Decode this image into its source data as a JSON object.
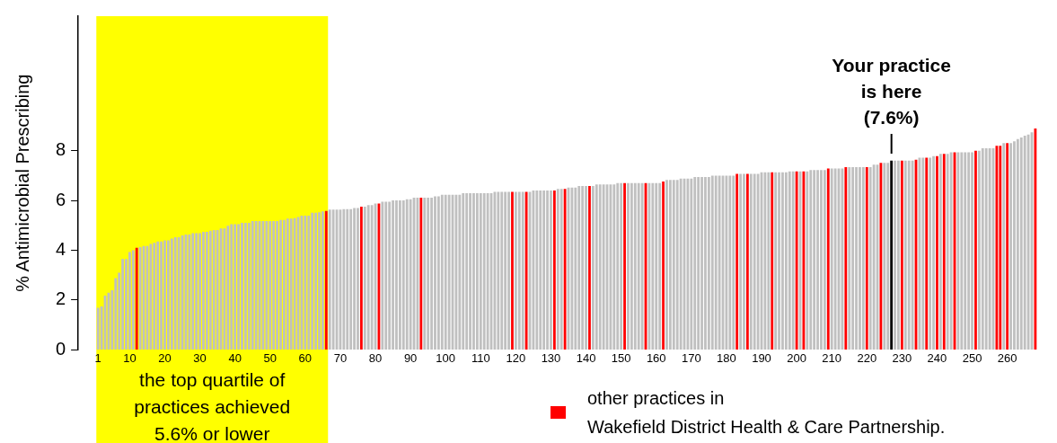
{
  "chart_data": {
    "type": "bar",
    "ylabel": "% Antimicrobial Prescribing",
    "xlim": [
      0.5,
      268.5
    ],
    "xticks": [
      1,
      10,
      20,
      30,
      40,
      50,
      60,
      70,
      80,
      90,
      100,
      110,
      120,
      130,
      140,
      150,
      160,
      170,
      180,
      190,
      200,
      210,
      220,
      230,
      240,
      250,
      260
    ],
    "ylim": [
      0,
      13.4
    ],
    "yticks": [
      0,
      2,
      4,
      6,
      8
    ],
    "grid": false,
    "legend": "bottom right",
    "bands": [
      {
        "axis": "x",
        "from": 0.5,
        "to": 66.5,
        "label": "the top quartile of\npractices achieved\n5.6% or lower",
        "color": "#ffff00"
      }
    ],
    "annotations": [
      {
        "text": "Your practice\nis here\n(7.6%)",
        "x": 227,
        "y": 7.6
      }
    ],
    "series": [
      {
        "color": "#c0c0c0",
        "x": [
          1,
          2,
          3,
          4,
          5,
          6,
          7,
          8,
          9,
          10,
          11,
          13,
          14,
          15,
          16,
          17,
          18,
          19,
          20,
          21,
          22,
          23,
          24,
          25,
          26,
          27,
          28,
          29,
          30,
          31,
          32,
          33,
          34,
          35,
          36,
          37,
          38,
          39,
          40,
          41,
          42,
          43,
          44,
          45,
          46,
          47,
          48,
          49,
          50,
          51,
          52,
          53,
          54,
          55,
          56,
          57,
          58,
          59,
          60,
          61,
          62,
          63,
          64,
          65,
          67,
          68,
          69,
          70,
          71,
          72,
          73,
          74,
          75,
          77,
          78,
          79,
          80,
          82,
          83,
          84,
          85,
          86,
          87,
          88,
          89,
          90,
          91,
          92,
          94,
          95,
          96,
          97,
          98,
          99,
          100,
          101,
          102,
          103,
          104,
          105,
          106,
          107,
          108,
          109,
          110,
          111,
          112,
          113,
          114,
          115,
          116,
          117,
          118,
          120,
          121,
          122,
          124,
          125,
          126,
          127,
          128,
          129,
          130,
          132,
          133,
          135,
          136,
          137,
          138,
          139,
          140,
          142,
          143,
          144,
          145,
          146,
          147,
          148,
          149,
          150,
          152,
          153,
          154,
          155,
          156,
          158,
          159,
          160,
          161,
          163,
          164,
          165,
          166,
          167,
          168,
          169,
          170,
          171,
          172,
          173,
          174,
          175,
          176,
          177,
          178,
          179,
          180,
          181,
          182,
          184,
          185,
          187,
          188,
          189,
          190,
          191,
          192,
          194,
          195,
          196,
          197,
          198,
          199,
          201,
          203,
          204,
          205,
          206,
          207,
          208,
          210,
          211,
          212,
          213,
          215,
          216,
          217,
          218,
          219,
          221,
          222,
          223,
          225,
          226,
          228,
          229,
          231,
          232,
          233,
          235,
          236,
          238,
          239,
          241,
          243,
          244,
          246,
          247,
          248,
          249,
          250,
          252,
          253,
          254,
          255,
          256,
          259,
          261,
          262,
          263,
          264,
          265,
          266,
          267
        ],
        "values": [
          1.69,
          1.75,
          2.18,
          2.3,
          2.4,
          2.88,
          3.1,
          3.65,
          3.65,
          3.93,
          4.0,
          4.13,
          4.17,
          4.17,
          4.25,
          4.3,
          4.35,
          4.35,
          4.4,
          4.4,
          4.47,
          4.52,
          4.52,
          4.6,
          4.63,
          4.63,
          4.69,
          4.69,
          4.69,
          4.74,
          4.74,
          4.79,
          4.81,
          4.81,
          4.88,
          4.88,
          4.98,
          5.05,
          5.05,
          5.05,
          5.1,
          5.1,
          5.1,
          5.17,
          5.17,
          5.17,
          5.17,
          5.17,
          5.17,
          5.17,
          5.17,
          5.22,
          5.22,
          5.27,
          5.27,
          5.29,
          5.34,
          5.39,
          5.39,
          5.39,
          5.51,
          5.51,
          5.53,
          5.56,
          5.63,
          5.63,
          5.63,
          5.63,
          5.65,
          5.65,
          5.65,
          5.7,
          5.7,
          5.75,
          5.81,
          5.81,
          5.88,
          5.95,
          5.95,
          5.95,
          6.0,
          6.0,
          6.0,
          6.0,
          6.05,
          6.05,
          6.11,
          6.11,
          6.11,
          6.11,
          6.11,
          6.17,
          6.17,
          6.23,
          6.23,
          6.23,
          6.23,
          6.23,
          6.23,
          6.29,
          6.29,
          6.29,
          6.29,
          6.29,
          6.29,
          6.29,
          6.29,
          6.29,
          6.35,
          6.35,
          6.35,
          6.35,
          6.35,
          6.35,
          6.35,
          6.35,
          6.35,
          6.4,
          6.4,
          6.4,
          6.4,
          6.4,
          6.4,
          6.46,
          6.46,
          6.52,
          6.52,
          6.52,
          6.58,
          6.58,
          6.58,
          6.58,
          6.64,
          6.64,
          6.64,
          6.64,
          6.64,
          6.64,
          6.7,
          6.7,
          6.7,
          6.7,
          6.7,
          6.7,
          6.7,
          6.7,
          6.7,
          6.7,
          6.7,
          6.82,
          6.82,
          6.82,
          6.82,
          6.88,
          6.88,
          6.88,
          6.88,
          6.94,
          6.94,
          6.94,
          6.94,
          6.94,
          7.0,
          7.0,
          7.0,
          7.0,
          7.0,
          7.0,
          7.0,
          7.07,
          7.07,
          7.07,
          7.07,
          7.07,
          7.13,
          7.13,
          7.13,
          7.13,
          7.13,
          7.13,
          7.13,
          7.17,
          7.17,
          7.17,
          7.17,
          7.22,
          7.22,
          7.22,
          7.22,
          7.22,
          7.28,
          7.28,
          7.28,
          7.28,
          7.34,
          7.34,
          7.34,
          7.34,
          7.34,
          7.34,
          7.44,
          7.44,
          7.51,
          7.51,
          7.6,
          7.6,
          7.6,
          7.6,
          7.6,
          7.72,
          7.72,
          7.72,
          7.78,
          7.87,
          7.87,
          7.93,
          7.93,
          7.93,
          7.93,
          7.93,
          7.93,
          8.0,
          8.1,
          8.1,
          8.1,
          8.1,
          8.3,
          8.3,
          8.38,
          8.47,
          8.53,
          8.6,
          8.65,
          8.74
        ]
      },
      {
        "name": "other practices in\nWakefield District Health & Care Partnership.",
        "color": "#ff0000",
        "x": [
          12,
          66,
          76,
          81,
          93,
          119,
          123,
          131,
          134,
          141,
          151,
          157,
          162,
          183,
          186,
          193,
          200,
          202,
          209,
          214,
          220,
          224,
          230,
          234,
          237,
          240,
          242,
          245,
          251,
          257,
          258,
          260,
          268
        ],
        "values": [
          4.1,
          5.58,
          5.75,
          5.88,
          6.11,
          6.35,
          6.35,
          6.4,
          6.46,
          6.58,
          6.7,
          6.7,
          6.76,
          7.07,
          7.07,
          7.13,
          7.17,
          7.17,
          7.28,
          7.34,
          7.34,
          7.51,
          7.6,
          7.64,
          7.72,
          7.78,
          7.87,
          7.93,
          8.0,
          8.2,
          8.2,
          8.3,
          8.89
        ]
      },
      {
        "color": "#000000",
        "x": [
          227
        ],
        "values": [
          7.6
        ]
      }
    ]
  }
}
